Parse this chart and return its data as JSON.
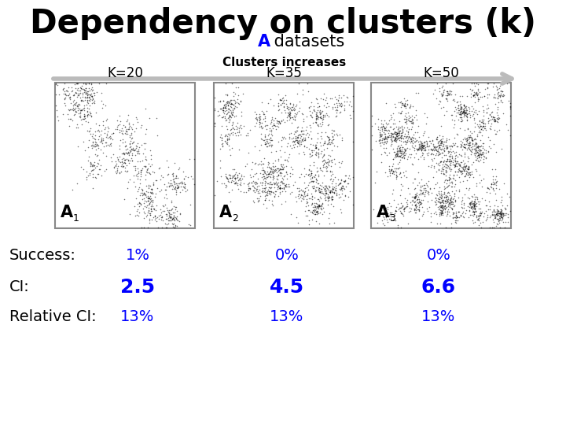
{
  "title_main": "Dependency on clusters (k)",
  "title_sub_colored": "A",
  "title_sub_rest": " datasets",
  "arrow_label": "Clusters increases",
  "k_labels": [
    "K=20",
    "K=35",
    "K=50"
  ],
  "dataset_subscripts": [
    "1",
    "2",
    "3"
  ],
  "success_label": "Success:",
  "ci_label": "CI:",
  "relci_label": "Relative CI:",
  "success_values": [
    "1%",
    "0%",
    "0%"
  ],
  "ci_values": [
    "2.5",
    "4.5",
    "6.6"
  ],
  "relci_values": [
    "13%",
    "13%",
    "13%"
  ],
  "blue_color": "#0000FF",
  "black_color": "#000000",
  "gray_color": "#BBBBBB",
  "cluster_counts": [
    20,
    35,
    50
  ],
  "bg_color": "#FFFFFF"
}
